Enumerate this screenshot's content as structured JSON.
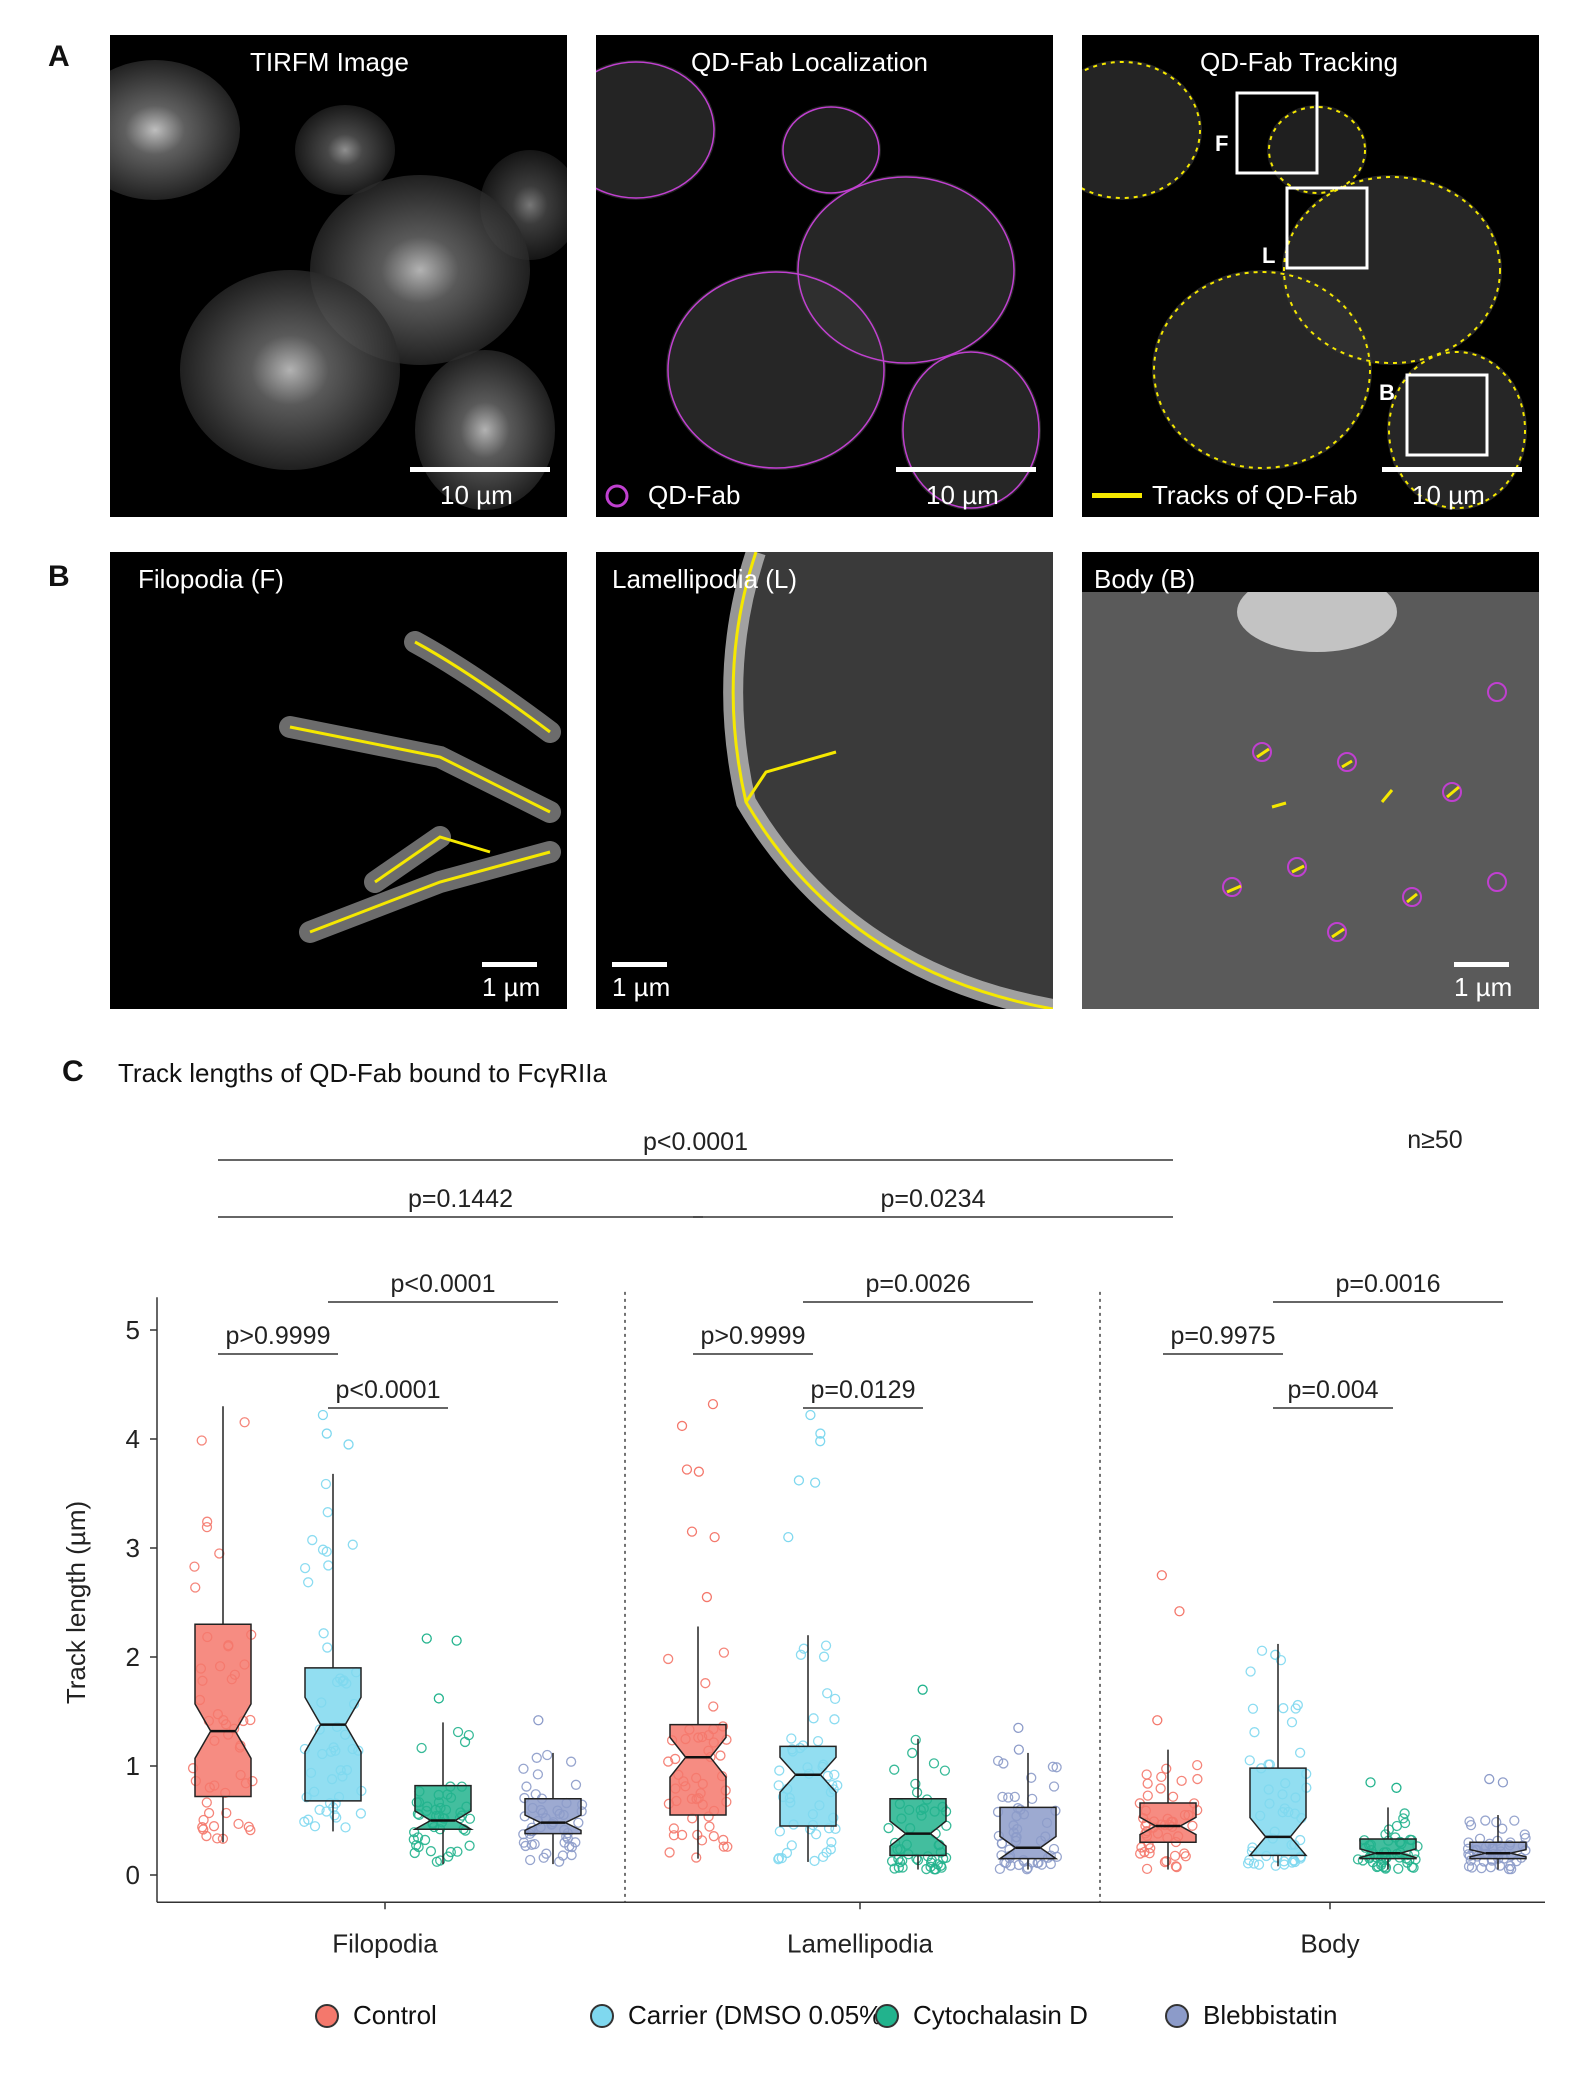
{
  "panels": {
    "a": {
      "letter": "A",
      "images": [
        {
          "title": "TIRFM Image",
          "scale": "10 µm"
        },
        {
          "title": "QD-Fab Localization",
          "scale": "10 µm",
          "legend": "QD-Fab"
        },
        {
          "title": "QD-Fab Tracking",
          "scale": "10 µm",
          "legend": "Tracks of QD-Fab",
          "boxes": [
            "F",
            "L",
            "B"
          ]
        }
      ]
    },
    "b": {
      "letter": "B",
      "images": [
        {
          "title": "Filopodia (F)",
          "scale": "1 µm"
        },
        {
          "title": "Lamellipodia (L)",
          "scale": "1 µm"
        },
        {
          "title": "Body (B)",
          "scale": "1 µm"
        }
      ]
    },
    "c": {
      "letter": "C",
      "title": "Track lengths of QD-Fab bound to FcγRIIa"
    }
  },
  "colors": {
    "magenta": "#c040d0",
    "yellow": "#f5e800"
  },
  "chart_data": {
    "type": "box",
    "title": "Track lengths of QD-Fab bound to FcγRIIa",
    "ylabel": "Track length (µm)",
    "ylim": [
      0,
      5
    ],
    "yticks": [
      0,
      1,
      2,
      3,
      4,
      5
    ],
    "groups": [
      "Filopodia",
      "Lamellipodia",
      "Body"
    ],
    "note": "n≥50",
    "series": [
      {
        "name": "Control",
        "color": "#f4786c"
      },
      {
        "name": "Carrier (DMSO 0.05%",
        "color": "#7fd8ef"
      },
      {
        "name": "Cytochalasin D",
        "color": "#22b38d"
      },
      {
        "name": "Blebbistatin",
        "color": "#8c9bc9"
      }
    ],
    "boxes": [
      {
        "group": "Filopodia",
        "series": "Control",
        "min": 0.3,
        "q1": 0.72,
        "median": 1.32,
        "q3": 2.3,
        "max": 4.3,
        "outliers": []
      },
      {
        "group": "Filopodia",
        "series": "Carrier (DMSO 0.05%",
        "min": 0.4,
        "q1": 0.68,
        "median": 1.38,
        "q3": 1.9,
        "max": 3.68,
        "outliers": [
          3.95,
          4.05,
          4.22
        ]
      },
      {
        "group": "Filopodia",
        "series": "Cytochalasin D",
        "min": 0.1,
        "q1": 0.42,
        "median": 0.5,
        "q3": 0.82,
        "max": 1.4,
        "outliers": [
          1.62,
          2.15,
          2.17
        ]
      },
      {
        "group": "Filopodia",
        "series": "Blebbistatin",
        "min": 0.1,
        "q1": 0.38,
        "median": 0.48,
        "q3": 0.7,
        "max": 1.12,
        "outliers": [
          1.42
        ]
      },
      {
        "group": "Lamellipodia",
        "series": "Control",
        "min": 0.15,
        "q1": 0.55,
        "median": 1.08,
        "q3": 1.38,
        "max": 2.28,
        "outliers": [
          2.55,
          3.1,
          3.15,
          3.7,
          3.72,
          4.12,
          4.32
        ]
      },
      {
        "group": "Lamellipodia",
        "series": "Carrier (DMSO 0.05%",
        "min": 0.12,
        "q1": 0.45,
        "median": 0.92,
        "q3": 1.18,
        "max": 2.2,
        "outliers": [
          3.1,
          3.6,
          3.62,
          3.98,
          4.05,
          4.22
        ]
      },
      {
        "group": "Lamellipodia",
        "series": "Cytochalasin D",
        "min": 0.05,
        "q1": 0.18,
        "median": 0.38,
        "q3": 0.7,
        "max": 1.25,
        "outliers": [
          1.7
        ]
      },
      {
        "group": "Lamellipodia",
        "series": "Blebbistatin",
        "min": 0.05,
        "q1": 0.15,
        "median": 0.25,
        "q3": 0.62,
        "max": 1.12,
        "outliers": [
          1.15,
          1.35
        ]
      },
      {
        "group": "Body",
        "series": "Control",
        "min": 0.05,
        "q1": 0.3,
        "median": 0.45,
        "q3": 0.66,
        "max": 1.15,
        "outliers": [
          1.42,
          2.42,
          2.75
        ]
      },
      {
        "group": "Body",
        "series": "Carrier (DMSO 0.05%",
        "min": 0.08,
        "q1": 0.18,
        "median": 0.35,
        "q3": 0.98,
        "max": 2.12,
        "outliers": [
          2.02
        ]
      },
      {
        "group": "Body",
        "series": "Cytochalasin D",
        "min": 0.05,
        "q1": 0.15,
        "median": 0.2,
        "q3": 0.33,
        "max": 0.62,
        "outliers": [
          0.8,
          0.85
        ]
      },
      {
        "group": "Body",
        "series": "Blebbistatin",
        "min": 0.05,
        "q1": 0.15,
        "median": 0.2,
        "q3": 0.3,
        "max": 0.55,
        "outliers": [
          0.85,
          0.88
        ]
      }
    ],
    "comparisons": [
      {
        "label": "p<0.0001",
        "from_group": "Filopodia",
        "from_series": "Control",
        "to_group": "Body",
        "to_series": "Control",
        "tier": 1
      },
      {
        "label": "p=0.1442",
        "from_group": "Filopodia",
        "from_series": "Control",
        "to_group": "Lamellipodia",
        "to_series": "Control",
        "tier": 2
      },
      {
        "label": "p=0.0234",
        "from_group": "Lamellipodia",
        "from_series": "Control",
        "to_group": "Body",
        "to_series": "Control",
        "tier": 2
      },
      {
        "label": "p<0.0001",
        "from_group": "Filopodia",
        "from_series": "Carrier (DMSO 0.05%",
        "to_group": "Filopodia",
        "to_series": "Blebbistatin",
        "tier": 3
      },
      {
        "label": "p=0.0026",
        "from_group": "Lamellipodia",
        "from_series": "Carrier (DMSO 0.05%",
        "to_group": "Lamellipodia",
        "to_series": "Blebbistatin",
        "tier": 3
      },
      {
        "label": "p=0.0016",
        "from_group": "Body",
        "from_series": "Carrier (DMSO 0.05%",
        "to_group": "Body",
        "to_series": "Blebbistatin",
        "tier": 3
      },
      {
        "label": "p>0.9999",
        "from_group": "Filopodia",
        "from_series": "Control",
        "to_group": "Filopodia",
        "to_series": "Carrier (DMSO 0.05%",
        "tier": 4
      },
      {
        "label": "p>0.9999",
        "from_group": "Lamellipodia",
        "from_series": "Control",
        "to_group": "Lamellipodia",
        "to_series": "Carrier (DMSO 0.05%",
        "tier": 4
      },
      {
        "label": "p=0.9975",
        "from_group": "Body",
        "from_series": "Control",
        "to_group": "Body",
        "to_series": "Carrier (DMSO 0.05%",
        "tier": 4
      },
      {
        "label": "p<0.0001",
        "from_group": "Filopodia",
        "from_series": "Carrier (DMSO 0.05%",
        "to_group": "Filopodia",
        "to_series": "Cytochalasin D",
        "tier": 5
      },
      {
        "label": "p=0.0129",
        "from_group": "Lamellipodia",
        "from_series": "Carrier (DMSO 0.05%",
        "to_group": "Lamellipodia",
        "to_series": "Cytochalasin D",
        "tier": 5
      },
      {
        "label": "p=0.004",
        "from_group": "Body",
        "from_series": "Carrier (DMSO 0.05%",
        "to_group": "Body",
        "to_series": "Cytochalasin D",
        "tier": 5
      }
    ]
  }
}
